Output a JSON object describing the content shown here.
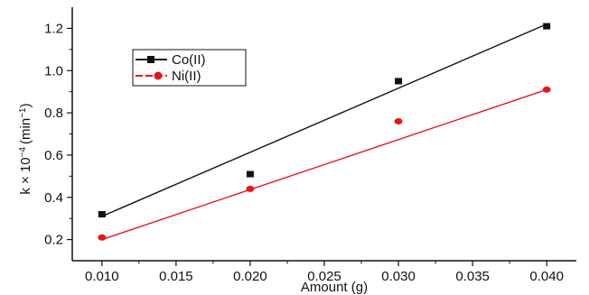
{
  "chart_data": {
    "type": "scatter",
    "title": "",
    "xlabel": "Amount (g)",
    "ylabel": "k × 10",
    "ylabel_exponent": "−4",
    "ylabel_unit_prefix": "(min",
    "ylabel_unit_exponent": "−1",
    "ylabel_unit_suffix": ")",
    "xlim": [
      0.008,
      0.042
    ],
    "ylim": [
      0.1,
      1.3
    ],
    "x_ticks": [
      "0.010",
      "0.015",
      "0.020",
      "0.025",
      "0.030",
      "0.035",
      "0.040"
    ],
    "x_tick_values": [
      0.01,
      0.015,
      0.02,
      0.025,
      0.03,
      0.035,
      0.04
    ],
    "y_ticks": [
      "0.2",
      "0.4",
      "0.6",
      "0.8",
      "1.0",
      "1.2"
    ],
    "y_tick_values": [
      0.2,
      0.4,
      0.6,
      0.8,
      1.0,
      1.2
    ],
    "grid": false,
    "legend_position": "top-left",
    "series": [
      {
        "name": "Co(II)",
        "color": "#111111",
        "marker": "square",
        "x": [
          0.01,
          0.02,
          0.03,
          0.04
        ],
        "y": [
          0.32,
          0.51,
          0.95,
          1.21
        ],
        "fit_line": {
          "x": [
            0.01,
            0.04
          ],
          "y": [
            0.31,
            1.22
          ]
        }
      },
      {
        "name": "Ni(II)",
        "color": "#e8141c",
        "marker": "circle",
        "x": [
          0.01,
          0.02,
          0.03,
          0.04
        ],
        "y": [
          0.21,
          0.44,
          0.76,
          0.91
        ],
        "fit_line": {
          "x": [
            0.01,
            0.04
          ],
          "y": [
            0.2,
            0.91
          ]
        }
      }
    ]
  }
}
